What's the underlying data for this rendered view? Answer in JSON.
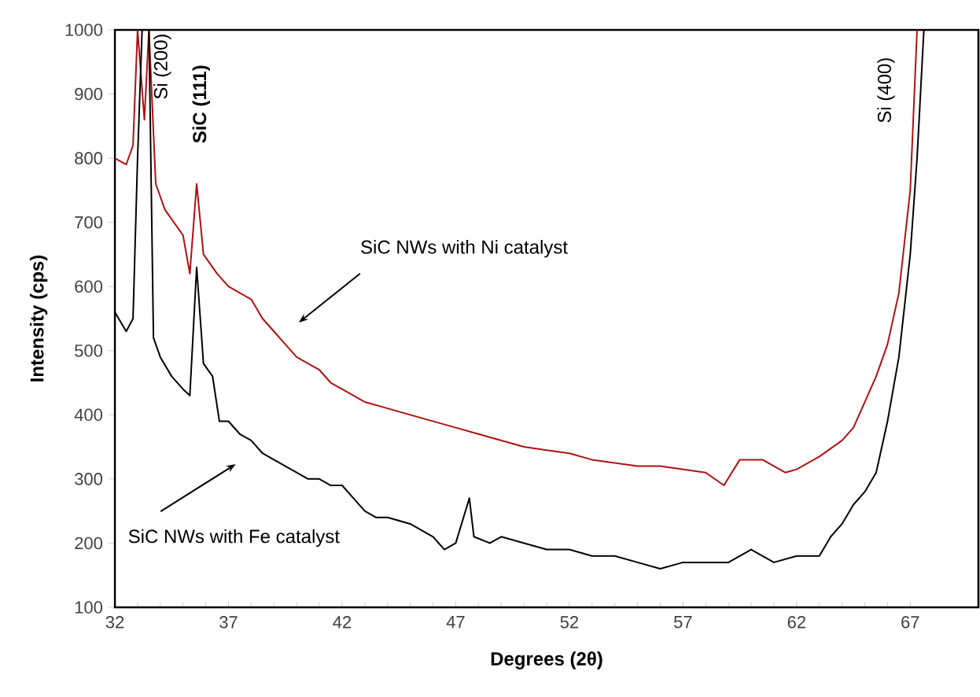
{
  "chart_data": {
    "type": "line",
    "xlabel": "Degrees (2θ)",
    "ylabel": "Intensity (cps)",
    "xlim": [
      32,
      70
    ],
    "xticks": [
      32,
      37,
      42,
      47,
      52,
      57,
      62,
      67
    ],
    "ylim": [
      100,
      1000
    ],
    "yticks": [
      100,
      200,
      300,
      400,
      500,
      600,
      700,
      800,
      900,
      1000
    ],
    "marker": "none",
    "line_style": "solid",
    "series": [
      {
        "color": "#b01010",
        "x": [
          32,
          32.5,
          32.8,
          33.0,
          33.3,
          33.5,
          33.8,
          34.2,
          34.6,
          35.0,
          35.3,
          35.6,
          35.9,
          36.5,
          37,
          37.5,
          38,
          38.5,
          39,
          39.5,
          40,
          40.5,
          41,
          41.5,
          42,
          43,
          44,
          45,
          46,
          47,
          48,
          49,
          50,
          51,
          52,
          53,
          54,
          55,
          56,
          57,
          58,
          58.8,
          59.5,
          60.5,
          61.5,
          62,
          63,
          64,
          64.5,
          65,
          65.5,
          66,
          66.5,
          67,
          67.3
        ],
        "values": [
          800,
          790,
          820,
          1000,
          860,
          1000,
          760,
          720,
          700,
          680,
          620,
          760,
          650,
          620,
          600,
          590,
          580,
          550,
          530,
          510,
          490,
          480,
          470,
          450,
          440,
          420,
          410,
          400,
          390,
          380,
          370,
          360,
          350,
          345,
          340,
          330,
          325,
          320,
          320,
          315,
          310,
          290,
          330,
          330,
          310,
          315,
          335,
          360,
          380,
          420,
          460,
          510,
          590,
          750,
          1000
        ]
      },
      {
        "color": "#000000",
        "x": [
          32,
          32.5,
          32.8,
          33.0,
          33.2,
          33.5,
          33.7,
          34,
          34.5,
          35,
          35.3,
          35.6,
          35.9,
          36.3,
          36.6,
          37,
          37.5,
          38,
          38.5,
          39,
          39.5,
          40,
          40.5,
          41,
          41.5,
          42,
          42.5,
          43,
          43.5,
          44,
          45,
          46,
          46.5,
          47,
          47.6,
          47.8,
          48.5,
          49,
          50,
          51,
          52,
          53,
          54,
          55,
          56,
          57,
          58,
          59,
          60,
          61,
          62,
          63,
          63.5,
          64,
          64.5,
          65,
          65.5,
          66,
          66.5,
          67,
          67.3,
          67.6
        ],
        "values": [
          560,
          530,
          550,
          800,
          1000,
          1000,
          520,
          490,
          460,
          440,
          430,
          630,
          480,
          460,
          390,
          390,
          370,
          360,
          340,
          330,
          320,
          310,
          300,
          300,
          290,
          290,
          270,
          250,
          240,
          240,
          230,
          210,
          190,
          200,
          270,
          210,
          200,
          210,
          200,
          190,
          190,
          180,
          180,
          170,
          160,
          170,
          170,
          170,
          190,
          170,
          180,
          180,
          210,
          230,
          260,
          280,
          310,
          390,
          490,
          650,
          800,
          1000
        ]
      }
    ],
    "annotations": [
      "Si (200)",
      "SiC (111)",
      "Si (400)",
      "SiC NWs with Ni catalyst",
      "SiC NWs with Fe catalyst"
    ]
  }
}
